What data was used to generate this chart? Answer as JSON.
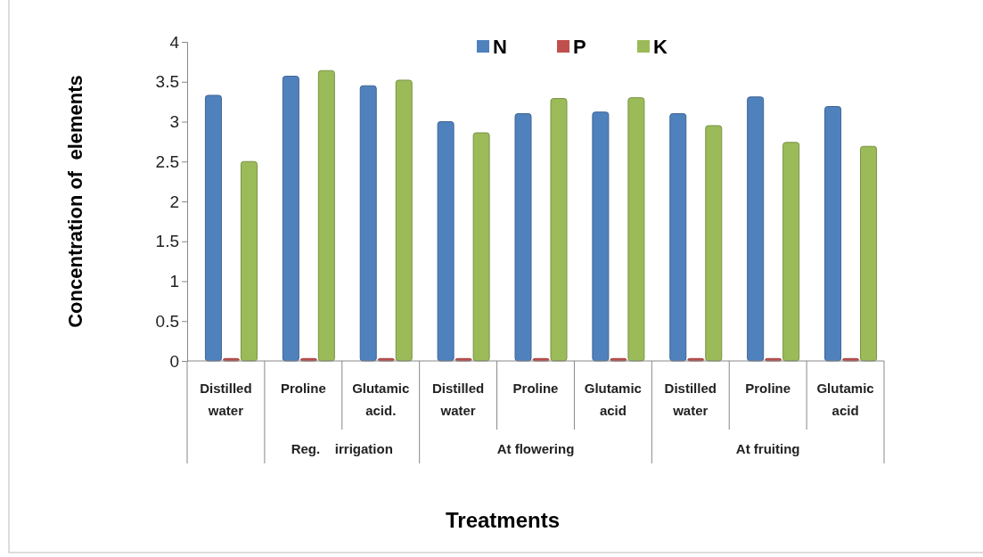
{
  "chart_data": {
    "type": "bar",
    "xlabel": "Treatments",
    "ylabel": "Concentration of  elements",
    "categories": [
      "Distilled water",
      "Proline",
      "Glutamic acid.",
      "Distilled water",
      "Proline",
      "Glutamic acid",
      "Distilled water",
      "Proline",
      "Glutamic acid"
    ],
    "series": [
      {
        "name": "N",
        "color": "#4f81bd",
        "values": [
          3.33,
          3.57,
          3.45,
          3.0,
          3.1,
          3.12,
          3.1,
          3.31,
          3.19
        ]
      },
      {
        "name": "P",
        "color": "#c0504d",
        "values": [
          0.03,
          0.03,
          0.03,
          0.03,
          0.03,
          0.03,
          0.03,
          0.03,
          0.03
        ]
      },
      {
        "name": "K",
        "color": "#9bbb59",
        "values": [
          2.5,
          3.64,
          3.52,
          2.86,
          3.29,
          3.3,
          2.95,
          2.74,
          2.69
        ]
      }
    ],
    "ylim": [
      0,
      4
    ],
    "yticks": [
      0,
      0.5,
      1,
      1.5,
      2,
      2.5,
      3,
      3.5,
      4
    ],
    "annotations": [
      "Reg.    irrigation",
      "At flowering",
      "At fruiting"
    ],
    "legend": "top",
    "grid": false
  }
}
